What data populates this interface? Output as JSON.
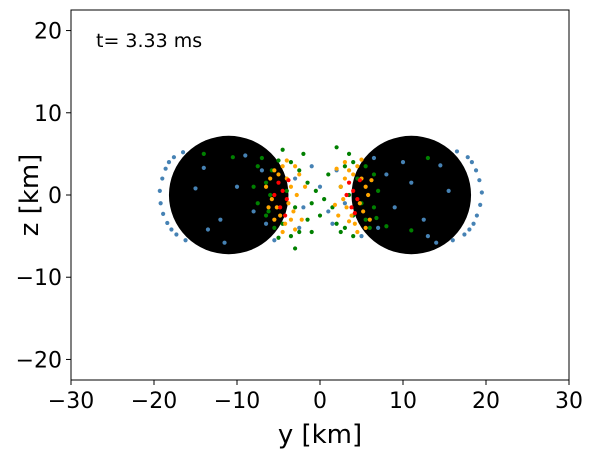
{
  "chart_data": {
    "type": "scatter",
    "title": "",
    "xlabel": "y [km]",
    "ylabel": "z [km]",
    "xlim": [
      -30,
      30
    ],
    "ylim": [
      -22.5,
      22.5
    ],
    "xticks": [
      -30,
      -20,
      -10,
      0,
      10,
      20,
      30
    ],
    "yticks": [
      -20,
      -10,
      0,
      10,
      20
    ],
    "xtick_labels": [
      "−30",
      "−20",
      "−10",
      "0",
      "10",
      "20",
      "30"
    ],
    "ytick_labels": [
      "−20",
      "−10",
      "0",
      "10",
      "20"
    ],
    "grid": false,
    "annotation": "t= 3.33 ms",
    "body": {
      "shape": "two overlapping discs",
      "color": "#000000",
      "lobes": [
        {
          "center": [
            -11,
            0
          ],
          "radius": 7.2
        },
        {
          "center": [
            11,
            0
          ],
          "radius": 7.2
        }
      ]
    },
    "series": [
      {
        "color": "#4682b4",
        "points": [
          [
            -19.3,
            0.5
          ],
          [
            -19.0,
            2.0
          ],
          [
            -18.6,
            3.2
          ],
          [
            -18.2,
            4.0
          ],
          [
            -17.6,
            4.6
          ],
          [
            -19.2,
            -1.0
          ],
          [
            -18.9,
            -2.3
          ],
          [
            -18.4,
            -3.4
          ],
          [
            -17.9,
            -4.2
          ],
          [
            -17.3,
            -4.8
          ],
          [
            -16.5,
            5.2
          ],
          [
            -16.2,
            -5.5
          ],
          [
            -14.0,
            3.3
          ],
          [
            -12.0,
            -3.0
          ],
          [
            -9.0,
            4.8
          ],
          [
            -8.0,
            -2.0
          ],
          [
            -6.5,
            -3.5
          ],
          [
            -13.5,
            -4.2
          ],
          [
            -10.0,
            1.0
          ],
          [
            -15.0,
            0.8
          ],
          [
            -7.0,
            3.0
          ],
          [
            -5.5,
            -5.5
          ],
          [
            -3.0,
            2.0
          ],
          [
            -2.0,
            -1.5
          ],
          [
            -1.0,
            3.5
          ],
          [
            0.0,
            1.0
          ],
          [
            1.0,
            -2.0
          ],
          [
            2.0,
            3.0
          ],
          [
            1.5,
            -3.5
          ],
          [
            -2.5,
            -4.0
          ],
          [
            3.0,
            -1.0
          ],
          [
            19.5,
            0.3
          ],
          [
            19.2,
            1.8
          ],
          [
            18.8,
            3.0
          ],
          [
            18.3,
            4.0
          ],
          [
            17.8,
            4.6
          ],
          [
            19.3,
            -1.2
          ],
          [
            18.9,
            -2.5
          ],
          [
            18.5,
            -3.5
          ],
          [
            18.0,
            -4.2
          ],
          [
            17.4,
            -4.8
          ],
          [
            16.5,
            5.3
          ],
          [
            16.0,
            -5.5
          ],
          [
            14.5,
            3.6
          ],
          [
            12.5,
            -3.0
          ],
          [
            10.0,
            4.0
          ],
          [
            9.0,
            -1.5
          ],
          [
            8.0,
            2.5
          ],
          [
            7.0,
            -4.0
          ],
          [
            13.0,
            -5.0
          ],
          [
            11.0,
            1.5
          ],
          [
            15.5,
            0.5
          ],
          [
            6.5,
            4.5
          ],
          [
            5.0,
            -5.0
          ],
          [
            14.0,
            -5.8
          ],
          [
            -11.5,
            -5.8
          ]
        ]
      },
      {
        "color": "#008000",
        "points": [
          [
            -14.0,
            5.0
          ],
          [
            -10.5,
            4.6
          ],
          [
            -7.5,
            3.5
          ],
          [
            -6.5,
            1.5
          ],
          [
            -6.0,
            0.0
          ],
          [
            -6.2,
            -2.0
          ],
          [
            -5.8,
            3.0
          ],
          [
            -5.0,
            4.2
          ],
          [
            -4.5,
            5.5
          ],
          [
            -3.5,
            4.0
          ],
          [
            -2.5,
            3.0
          ],
          [
            -2.0,
            5.0
          ],
          [
            -1.5,
            1.5
          ],
          [
            -1.0,
            -1.0
          ],
          [
            -1.5,
            -3.0
          ],
          [
            -2.5,
            -4.5
          ],
          [
            -3.5,
            -5.0
          ],
          [
            -4.5,
            -3.5
          ],
          [
            -5.5,
            -4.0
          ],
          [
            -6.5,
            -2.5
          ],
          [
            -7.5,
            -1.0
          ],
          [
            -8.0,
            1.0
          ],
          [
            -3.0,
            -6.5
          ],
          [
            -4.0,
            0.5
          ],
          [
            -3.0,
            -1.5
          ],
          [
            -0.5,
            0.5
          ],
          [
            0.5,
            -0.5
          ],
          [
            1.0,
            2.5
          ],
          [
            1.5,
            -1.5
          ],
          [
            2.0,
            -3.5
          ],
          [
            2.5,
            -4.5
          ],
          [
            3.0,
            3.5
          ],
          [
            3.5,
            5.0
          ],
          [
            4.0,
            4.0
          ],
          [
            4.5,
            2.0
          ],
          [
            5.0,
            -1.0
          ],
          [
            5.5,
            -3.0
          ],
          [
            6.0,
            -4.0
          ],
          [
            6.5,
            2.5
          ],
          [
            7.0,
            0.5
          ],
          [
            6.5,
            -1.5
          ],
          [
            4.0,
            -5.0
          ],
          [
            3.0,
            -4.0
          ],
          [
            2.5,
            1.0
          ],
          [
            3.5,
            0.0
          ],
          [
            4.0,
            -2.5
          ],
          [
            5.5,
            3.5
          ],
          [
            6.8,
            -2.8
          ],
          [
            8.0,
            -3.8
          ],
          [
            11.0,
            -4.3
          ],
          [
            13.0,
            4.5
          ],
          [
            2.0,
            5.8
          ],
          [
            -1.0,
            -4.5
          ],
          [
            0.0,
            -2.5
          ],
          [
            -5.0,
            -5.2
          ],
          [
            -7.0,
            4.5
          ]
        ]
      },
      {
        "color": "#ffa500",
        "points": [
          [
            -6.5,
            1.0
          ],
          [
            -6.0,
            2.0
          ],
          [
            -5.5,
            3.0
          ],
          [
            -5.0,
            2.5
          ],
          [
            -4.5,
            3.5
          ],
          [
            -4.0,
            2.0
          ],
          [
            -3.5,
            1.0
          ],
          [
            -5.8,
            -0.5
          ],
          [
            -5.2,
            -1.5
          ],
          [
            -4.8,
            -2.5
          ],
          [
            -4.2,
            -3.5
          ],
          [
            -3.8,
            -1.0
          ],
          [
            -3.2,
            -2.0
          ],
          [
            -2.8,
            0.0
          ],
          [
            -2.5,
            2.5
          ],
          [
            -3.0,
            3.5
          ],
          [
            -3.5,
            -3.0
          ],
          [
            -4.5,
            -4.5
          ],
          [
            -5.5,
            -3.0
          ],
          [
            -6.2,
            -1.5
          ],
          [
            -2.2,
            -3.0
          ],
          [
            -1.8,
            1.0
          ],
          [
            -4.0,
            4.2
          ],
          [
            -3.0,
            -4.2
          ],
          [
            2.5,
            1.0
          ],
          [
            3.0,
            2.0
          ],
          [
            3.5,
            3.0
          ],
          [
            4.0,
            2.5
          ],
          [
            4.5,
            3.5
          ],
          [
            5.0,
            2.0
          ],
          [
            5.5,
            1.0
          ],
          [
            2.8,
            -0.5
          ],
          [
            3.2,
            -1.5
          ],
          [
            3.8,
            -2.5
          ],
          [
            4.2,
            -3.5
          ],
          [
            4.8,
            -1.0
          ],
          [
            5.2,
            -2.0
          ],
          [
            5.8,
            0.0
          ],
          [
            6.0,
            -3.0
          ],
          [
            4.5,
            -4.5
          ],
          [
            3.5,
            -3.2
          ],
          [
            2.2,
            -2.5
          ],
          [
            6.2,
            1.8
          ],
          [
            5.0,
            4.3
          ],
          [
            2.0,
            3.2
          ],
          [
            1.8,
            -1.2
          ],
          [
            5.5,
            -4.0
          ],
          [
            3.0,
            4.0
          ]
        ]
      },
      {
        "color": "#ff0000",
        "points": [
          [
            -5.0,
            1.5
          ],
          [
            -4.5,
            0.5
          ],
          [
            -4.0,
            -0.5
          ],
          [
            -4.8,
            -1.5
          ],
          [
            -3.8,
            1.8
          ],
          [
            -4.2,
            -2.5
          ],
          [
            -5.5,
            0.0
          ],
          [
            3.5,
            1.5
          ],
          [
            4.0,
            0.5
          ],
          [
            4.5,
            -0.5
          ],
          [
            3.8,
            -1.5
          ],
          [
            4.8,
            1.8
          ],
          [
            3.2,
            0.0
          ],
          [
            4.2,
            -2.2
          ]
        ]
      }
    ]
  }
}
